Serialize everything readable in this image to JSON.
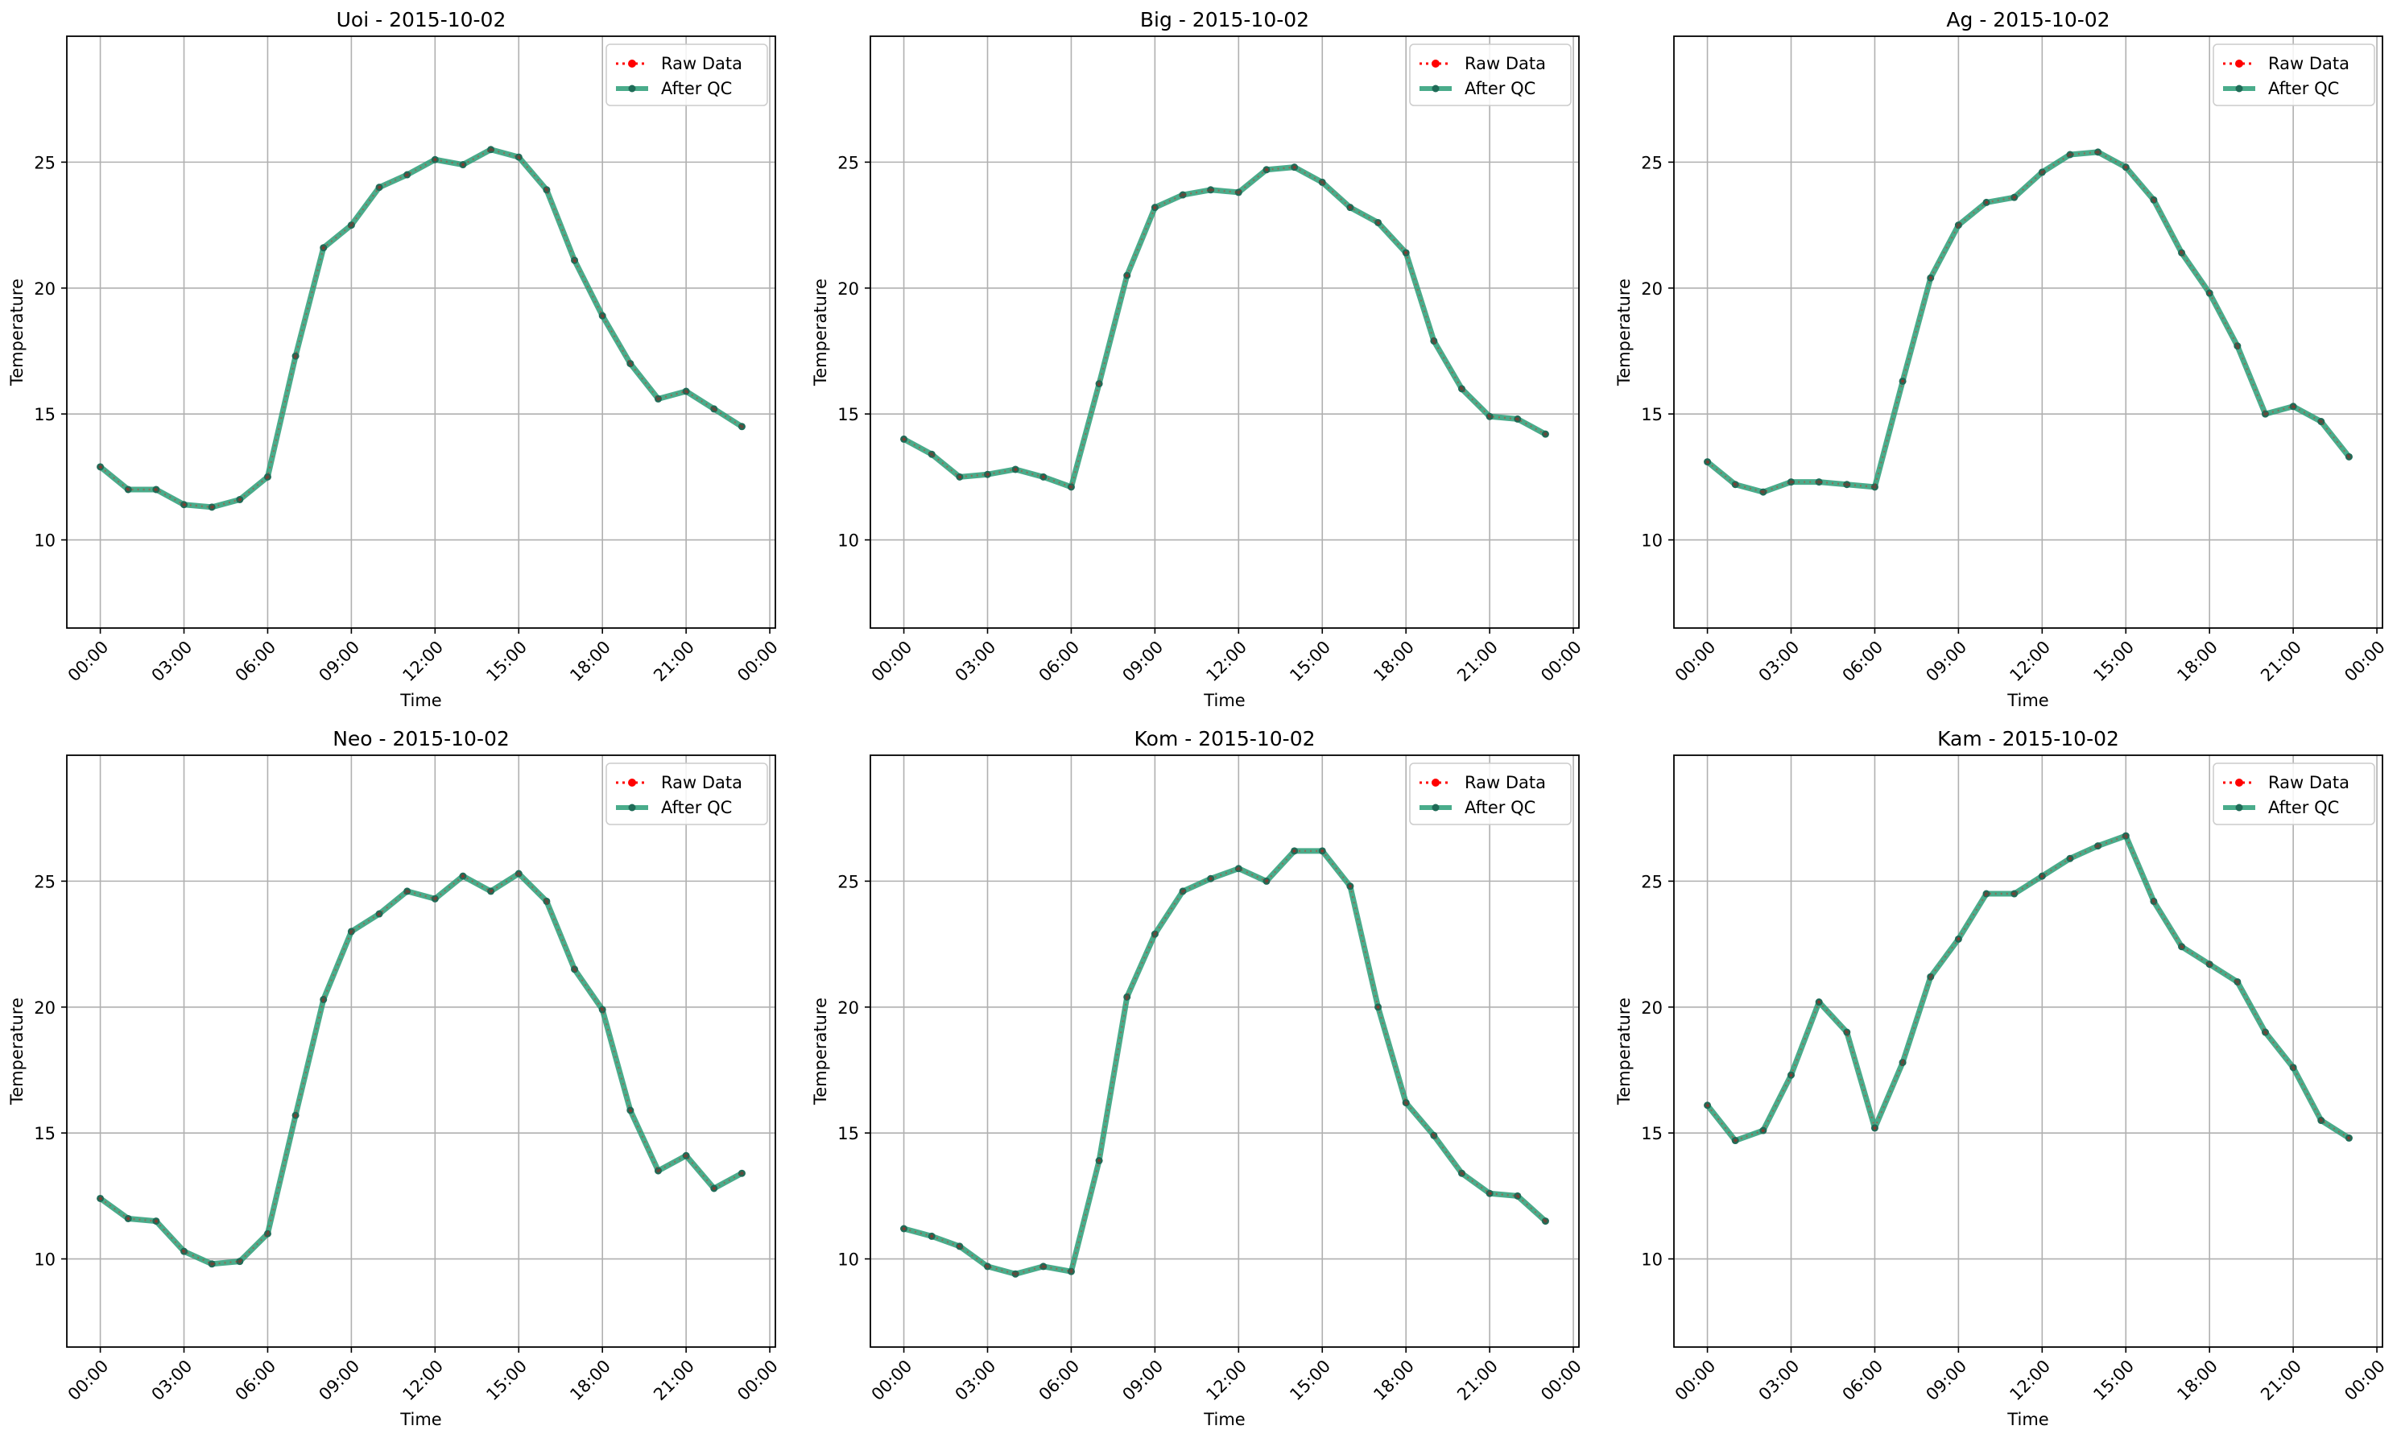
{
  "figure": {
    "legend_labels": {
      "raw": "Raw Data",
      "qc": "After QC"
    },
    "colors": {
      "raw": "#ff0000",
      "qc": "#2a9d77",
      "qc_marker": "#1f6b57",
      "grid": "#b0b0b0"
    }
  },
  "chart_data": [
    {
      "type": "line",
      "title": "Uoi - 2015-10-02",
      "xlabel": "Time",
      "ylabel": "Temperature",
      "xticks": [
        "00:00",
        "03:00",
        "06:00",
        "09:00",
        "12:00",
        "15:00",
        "18:00",
        "21:00",
        "00:00"
      ],
      "xlim": [
        -1.2,
        24.2
      ],
      "ylim": [
        6.5,
        30
      ],
      "yticks": [
        10,
        15,
        20,
        25
      ],
      "grid": true,
      "legend": "top-right",
      "x": [
        0,
        1,
        2,
        3,
        4,
        5,
        6,
        7,
        8,
        9,
        10,
        11,
        12,
        13,
        14,
        15,
        16,
        17,
        18,
        19,
        20,
        21,
        22,
        23
      ],
      "series": [
        {
          "name": "Raw Data",
          "values": [
            12.9,
            12.0,
            12.0,
            11.4,
            11.3,
            11.6,
            12.5,
            17.3,
            21.6,
            22.5,
            24.0,
            24.5,
            25.1,
            24.9,
            25.5,
            25.2,
            23.9,
            21.1,
            18.9,
            17.0,
            15.6,
            15.9,
            15.2,
            14.5
          ]
        },
        {
          "name": "After QC",
          "values": [
            12.9,
            12.0,
            12.0,
            11.4,
            11.3,
            11.6,
            12.5,
            17.3,
            21.6,
            22.5,
            24.0,
            24.5,
            25.1,
            24.9,
            25.5,
            25.2,
            23.9,
            21.1,
            18.9,
            17.0,
            15.6,
            15.9,
            15.2,
            14.5
          ]
        }
      ]
    },
    {
      "type": "line",
      "title": "Big - 2015-10-02",
      "xlabel": "Time",
      "ylabel": "Temperature",
      "xticks": [
        "00:00",
        "03:00",
        "06:00",
        "09:00",
        "12:00",
        "15:00",
        "18:00",
        "21:00",
        "00:00"
      ],
      "xlim": [
        -1.2,
        24.2
      ],
      "ylim": [
        6.5,
        30
      ],
      "yticks": [
        10,
        15,
        20,
        25
      ],
      "grid": true,
      "legend": "top-right",
      "x": [
        0,
        1,
        2,
        3,
        4,
        5,
        6,
        7,
        8,
        9,
        10,
        11,
        12,
        13,
        14,
        15,
        16,
        17,
        18,
        19,
        20,
        21,
        22,
        23
      ],
      "series": [
        {
          "name": "Raw Data",
          "values": [
            14.0,
            13.4,
            12.5,
            12.6,
            12.8,
            12.5,
            12.1,
            16.2,
            20.5,
            23.2,
            23.7,
            23.9,
            23.8,
            24.7,
            24.8,
            24.2,
            23.2,
            22.6,
            21.4,
            17.9,
            16.0,
            14.9,
            14.8,
            14.2
          ]
        },
        {
          "name": "After QC",
          "values": [
            14.0,
            13.4,
            12.5,
            12.6,
            12.8,
            12.5,
            12.1,
            16.2,
            20.5,
            23.2,
            23.7,
            23.9,
            23.8,
            24.7,
            24.8,
            24.2,
            23.2,
            22.6,
            21.4,
            17.9,
            16.0,
            14.9,
            14.8,
            14.2
          ]
        }
      ]
    },
    {
      "type": "line",
      "title": "Ag - 2015-10-02",
      "xlabel": "Time",
      "ylabel": "Temperature",
      "xticks": [
        "00:00",
        "03:00",
        "06:00",
        "09:00",
        "12:00",
        "15:00",
        "18:00",
        "21:00",
        "00:00"
      ],
      "xlim": [
        -1.2,
        24.2
      ],
      "ylim": [
        6.5,
        30
      ],
      "yticks": [
        10,
        15,
        20,
        25
      ],
      "grid": true,
      "legend": "top-right",
      "x": [
        0,
        1,
        2,
        3,
        4,
        5,
        6,
        7,
        8,
        9,
        10,
        11,
        12,
        13,
        14,
        15,
        16,
        17,
        18,
        19,
        20,
        21,
        22,
        23
      ],
      "series": [
        {
          "name": "Raw Data",
          "values": [
            13.1,
            12.2,
            11.9,
            12.3,
            12.3,
            12.2,
            12.1,
            16.3,
            20.4,
            22.5,
            23.4,
            23.6,
            24.6,
            25.3,
            25.4,
            24.8,
            23.5,
            21.4,
            19.8,
            17.7,
            15.0,
            15.3,
            14.7,
            13.3
          ]
        },
        {
          "name": "After QC",
          "values": [
            13.1,
            12.2,
            11.9,
            12.3,
            12.3,
            12.2,
            12.1,
            16.3,
            20.4,
            22.5,
            23.4,
            23.6,
            24.6,
            25.3,
            25.4,
            24.8,
            23.5,
            21.4,
            19.8,
            17.7,
            15.0,
            15.3,
            14.7,
            13.3
          ]
        }
      ]
    },
    {
      "type": "line",
      "title": "Neo - 2015-10-02",
      "xlabel": "Time",
      "ylabel": "Temperature",
      "xticks": [
        "00:00",
        "03:00",
        "06:00",
        "09:00",
        "12:00",
        "15:00",
        "18:00",
        "21:00",
        "00:00"
      ],
      "xlim": [
        -1.2,
        24.2
      ],
      "ylim": [
        6.5,
        30
      ],
      "yticks": [
        10,
        15,
        20,
        25
      ],
      "grid": true,
      "legend": "top-right",
      "x": [
        0,
        1,
        2,
        3,
        4,
        5,
        6,
        7,
        8,
        9,
        10,
        11,
        12,
        13,
        14,
        15,
        16,
        17,
        18,
        19,
        20,
        21,
        22,
        23
      ],
      "series": [
        {
          "name": "Raw Data",
          "values": [
            12.4,
            11.6,
            11.5,
            10.3,
            9.8,
            9.9,
            11.0,
            15.7,
            20.3,
            23.0,
            23.7,
            24.6,
            24.3,
            25.2,
            24.6,
            25.3,
            24.2,
            21.5,
            19.9,
            15.9,
            13.5,
            14.1,
            12.8,
            13.4
          ]
        },
        {
          "name": "After QC",
          "values": [
            12.4,
            11.6,
            11.5,
            10.3,
            9.8,
            9.9,
            11.0,
            15.7,
            20.3,
            23.0,
            23.7,
            24.6,
            24.3,
            25.2,
            24.6,
            25.3,
            24.2,
            21.5,
            19.9,
            15.9,
            13.5,
            14.1,
            12.8,
            13.4
          ]
        }
      ]
    },
    {
      "type": "line",
      "title": "Kom - 2015-10-02",
      "xlabel": "Time",
      "ylabel": "Temperature",
      "xticks": [
        "00:00",
        "03:00",
        "06:00",
        "09:00",
        "12:00",
        "15:00",
        "18:00",
        "21:00",
        "00:00"
      ],
      "xlim": [
        -1.2,
        24.2
      ],
      "ylim": [
        6.5,
        30
      ],
      "yticks": [
        10,
        15,
        20,
        25
      ],
      "grid": true,
      "legend": "top-right",
      "x": [
        0,
        1,
        2,
        3,
        4,
        5,
        6,
        7,
        8,
        9,
        10,
        11,
        12,
        13,
        14,
        15,
        16,
        17,
        18,
        19,
        20,
        21,
        22,
        23
      ],
      "series": [
        {
          "name": "Raw Data",
          "values": [
            11.2,
            10.9,
            10.5,
            9.7,
            9.4,
            9.7,
            9.5,
            13.9,
            20.4,
            22.9,
            24.6,
            25.1,
            25.5,
            25.0,
            26.2,
            26.2,
            24.8,
            20.0,
            16.2,
            14.9,
            13.4,
            12.6,
            12.5,
            11.5
          ]
        },
        {
          "name": "After QC",
          "values": [
            11.2,
            10.9,
            10.5,
            9.7,
            9.4,
            9.7,
            9.5,
            13.9,
            20.4,
            22.9,
            24.6,
            25.1,
            25.5,
            25.0,
            26.2,
            26.2,
            24.8,
            20.0,
            16.2,
            14.9,
            13.4,
            12.6,
            12.5,
            11.5
          ]
        }
      ]
    },
    {
      "type": "line",
      "title": "Kam - 2015-10-02",
      "xlabel": "Time",
      "ylabel": "Temperature",
      "xticks": [
        "00:00",
        "03:00",
        "06:00",
        "09:00",
        "12:00",
        "15:00",
        "18:00",
        "21:00",
        "00:00"
      ],
      "xlim": [
        -1.2,
        24.2
      ],
      "ylim": [
        6.5,
        30
      ],
      "yticks": [
        10,
        15,
        20,
        25
      ],
      "grid": true,
      "legend": "top-right",
      "x": [
        0,
        1,
        2,
        3,
        4,
        5,
        6,
        7,
        8,
        9,
        10,
        11,
        12,
        13,
        14,
        15,
        16,
        17,
        18,
        19,
        20,
        21,
        22,
        23
      ],
      "series": [
        {
          "name": "Raw Data",
          "values": [
            16.1,
            14.7,
            15.1,
            17.3,
            20.2,
            19.0,
            15.2,
            17.8,
            21.2,
            22.7,
            24.5,
            24.5,
            25.2,
            25.9,
            26.4,
            26.8,
            24.2,
            22.4,
            21.7,
            21.0,
            19.0,
            17.6,
            15.5,
            14.8
          ]
        },
        {
          "name": "After QC",
          "values": [
            16.1,
            14.7,
            15.1,
            17.3,
            20.2,
            19.0,
            15.2,
            17.8,
            21.2,
            22.7,
            24.5,
            24.5,
            25.2,
            25.9,
            26.4,
            26.8,
            24.2,
            22.4,
            21.7,
            21.0,
            19.0,
            17.6,
            15.5,
            14.8
          ]
        }
      ]
    }
  ]
}
